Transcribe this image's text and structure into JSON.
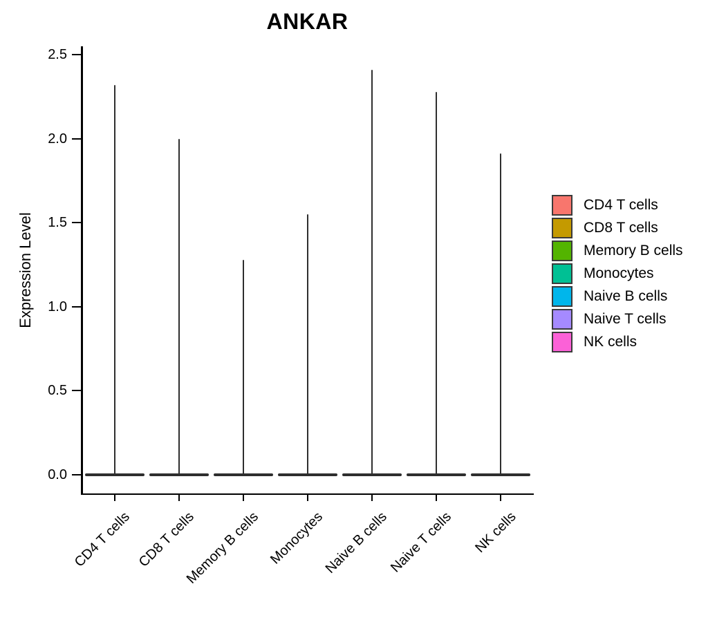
{
  "chart_data": {
    "type": "violin",
    "title": "ANKAR",
    "ylabel": "Expression Level",
    "xlabel": "",
    "ylim": [
      0,
      2.5
    ],
    "yticks": [
      0.0,
      0.5,
      1.0,
      1.5,
      2.0,
      2.5
    ],
    "ytick_labels": [
      "0.0",
      "0.5",
      "1.0",
      "1.5",
      "2.0",
      "2.5"
    ],
    "categories": [
      "CD4 T cells",
      "CD8 T cells",
      "Memory B cells",
      "Monocytes",
      "Naive B cells",
      "Naive T cells",
      "NK cells"
    ],
    "violins": [
      {
        "category": "CD4 T cells",
        "color": "#F8766D",
        "peak": 2.32,
        "bulk_at": 0.0
      },
      {
        "category": "CD8 T cells",
        "color": "#C49A00",
        "peak": 2.0,
        "bulk_at": 0.0
      },
      {
        "category": "Memory B cells",
        "color": "#53B400",
        "peak": 1.28,
        "bulk_at": 0.0
      },
      {
        "category": "Monocytes",
        "color": "#00C094",
        "peak": 1.55,
        "bulk_at": 0.0
      },
      {
        "category": "Naive B cells",
        "color": "#00B6EB",
        "peak": 2.41,
        "bulk_at": 0.0
      },
      {
        "category": "Naive T cells",
        "color": "#A58AFF",
        "peak": 2.28,
        "bulk_at": 0.0
      },
      {
        "category": "NK cells",
        "color": "#FB61D7",
        "peak": 1.91,
        "bulk_at": 0.0
      }
    ],
    "legend": {
      "position": "right",
      "entries": [
        {
          "label": "CD4 T cells",
          "color": "#F8766D"
        },
        {
          "label": "CD8 T cells",
          "color": "#C49A00"
        },
        {
          "label": "Memory B cells",
          "color": "#53B400"
        },
        {
          "label": "Monocytes",
          "color": "#00C094"
        },
        {
          "label": "Naive B cells",
          "color": "#00B6EB"
        },
        {
          "label": "Naive T cells",
          "color": "#A58AFF"
        },
        {
          "label": "NK cells",
          "color": "#FB61D7"
        }
      ]
    },
    "grid": false,
    "background_color": "#FFFFFF",
    "axis_color": "#000000",
    "violin_outline_color": "#2E2E2E"
  }
}
